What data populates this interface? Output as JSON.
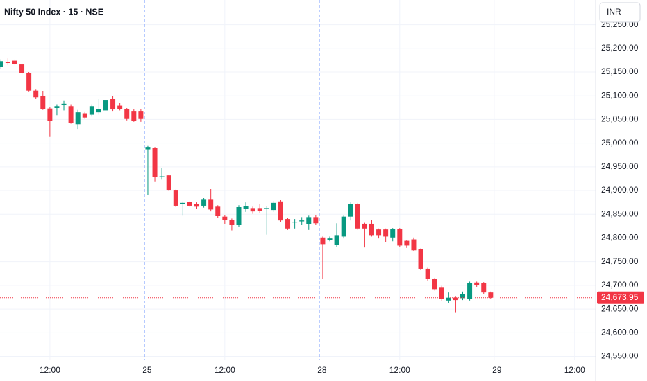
{
  "chart_data": {
    "type": "candlestick",
    "title": "Nifty 50 Index · 15 · NSE",
    "currency": "INR",
    "up_color": "#089981",
    "down_color": "#f23645",
    "grid": true,
    "x": [
      0,
      1,
      2,
      3,
      4,
      5,
      6,
      7,
      8,
      9,
      10,
      11,
      12,
      13,
      14,
      15,
      16,
      17,
      18,
      19,
      20,
      21,
      22,
      23,
      24,
      25,
      26,
      27,
      28,
      29,
      30,
      31,
      32,
      33,
      34,
      35,
      36,
      37,
      38,
      39,
      40,
      41,
      42,
      43,
      44,
      45,
      46,
      47,
      48,
      49,
      50,
      51,
      52,
      53,
      54,
      55,
      56,
      57,
      58,
      59,
      60,
      61,
      62,
      63,
      64,
      65,
      66,
      67,
      68,
      69,
      70
    ],
    "open": [
      25161,
      25171,
      25174,
      25166,
      25148,
      25111,
      25100,
      25073,
      25074,
      25081,
      25078,
      25040,
      25063,
      25060,
      25065,
      25069,
      25093,
      25079,
      25072,
      25068,
      25068,
      24987,
      24990,
      24928,
      24932,
      24900,
      24871,
      24876,
      24872,
      24868,
      24882,
      24866,
      24845,
      24838,
      24827,
      24861,
      24863,
      24863,
      24861,
      24859,
      24877,
      24840,
      24833,
      24835,
      24829,
      24844,
      24801,
      24796,
      24785,
      24803,
      24845,
      24872,
      24830,
      24830,
      24818,
      24818,
      24801,
      24819,
      24794,
      24797,
      24776,
      24735,
      24713,
      24695,
      24668,
      24674,
      24673,
      24671,
      24706,
      24705,
      24685
    ],
    "high": [
      25177,
      25179,
      25177,
      25168,
      25150,
      25113,
      25110,
      25076,
      25082,
      25089,
      25082,
      25070,
      25067,
      25082,
      25093,
      25098,
      25100,
      25085,
      25074,
      25072,
      25072,
      24994,
      24992,
      24948,
      24933,
      24902,
      24877,
      24878,
      24875,
      24884,
      24903,
      24869,
      24848,
      24841,
      24869,
      24875,
      24866,
      24871,
      24867,
      24878,
      24881,
      24842,
      24840,
      24844,
      24847,
      24848,
      24803,
      24803,
      24831,
      24847,
      24875,
      24874,
      24832,
      24838,
      24820,
      24820,
      24821,
      24821,
      24796,
      24801,
      24778,
      24737,
      24716,
      24699,
      24685,
      24676,
      24687,
      24708,
      24708,
      24707,
      24687
    ],
    "low": [
      25157,
      25165,
      25164,
      25145,
      25108,
      25093,
      25070,
      25013,
      25059,
      25069,
      25041,
      25030,
      25051,
      25056,
      25060,
      25064,
      25068,
      25069,
      25048,
      25045,
      25045,
      24890,
      24918,
      24923,
      24899,
      24865,
      24847,
      24865,
      24862,
      24864,
      24856,
      24843,
      24830,
      24816,
      24824,
      24855,
      24851,
      24853,
      24807,
      24855,
      24834,
      24817,
      24820,
      24827,
      24817,
      24827,
      24713,
      24793,
      24781,
      24799,
      24837,
      24817,
      24780,
      24803,
      24799,
      24791,
      24793,
      24781,
      24779,
      24772,
      24732,
      24709,
      24689,
      24667,
      24663,
      24642,
      24669,
      24668,
      24697,
      24682,
      24672
    ],
    "close": [
      25173,
      25169,
      25167,
      25148,
      25111,
      25097,
      25072,
      25047,
      25078,
      25083,
      25043,
      25065,
      25054,
      25078,
      25072,
      25090,
      25071,
      25072,
      25051,
      25047,
      25051,
      24992,
      24928,
      24930,
      24900,
      24868,
      24874,
      24868,
      24866,
      24882,
      24860,
      24846,
      24838,
      24827,
      24865,
      24867,
      24856,
      24857,
      24863,
      24874,
      24837,
      24820,
      24834,
      24837,
      24844,
      24831,
      24787,
      24799,
      24806,
      24845,
      24872,
      24820,
      24820,
      24806,
      24806,
      24803,
      24819,
      24784,
      24784,
      24774,
      24735,
      24713,
      24692,
      24671,
      24674,
      24669,
      24681,
      24705,
      24701,
      24685,
      24673.95
    ],
    "xlim": [
      -0.13,
      85
    ],
    "xticks": [
      {
        "value": 7,
        "label": "12:00"
      },
      {
        "value": 32,
        "label": "12:00"
      },
      {
        "value": 57,
        "label": "12:00"
      },
      {
        "value": 82,
        "label": "12:00"
      }
    ],
    "day_ticks": [
      {
        "value": 20.5,
        "label": "25"
      },
      {
        "value": 45.5,
        "label": "28"
      },
      {
        "value": 70.5,
        "label": "29"
      }
    ],
    "ylim": [
      24542,
      25302
    ],
    "yticks": [
      {
        "value": 24550,
        "label": "24,550.00"
      },
      {
        "value": 24600,
        "label": "24,600.00"
      },
      {
        "value": 24650,
        "label": "24,650.00"
      },
      {
        "value": 24700,
        "label": "24,700.00"
      },
      {
        "value": 24750,
        "label": "24,750.00"
      },
      {
        "value": 24800,
        "label": "24,800.00"
      },
      {
        "value": 24850,
        "label": "24,850.00"
      },
      {
        "value": 24900,
        "label": "24,900.00"
      },
      {
        "value": 24950,
        "label": "24,950.00"
      },
      {
        "value": 25000,
        "label": "25,000.00"
      },
      {
        "value": 25050,
        "label": "25,050.00"
      },
      {
        "value": 25100,
        "label": "25,100.00"
      },
      {
        "value": 25150,
        "label": "25,150.00"
      },
      {
        "value": 25200,
        "label": "25,200.00"
      },
      {
        "value": 25250,
        "label": "25,250.00"
      }
    ],
    "last_price": {
      "value": 24673.95,
      "label": "24,673.95"
    }
  }
}
